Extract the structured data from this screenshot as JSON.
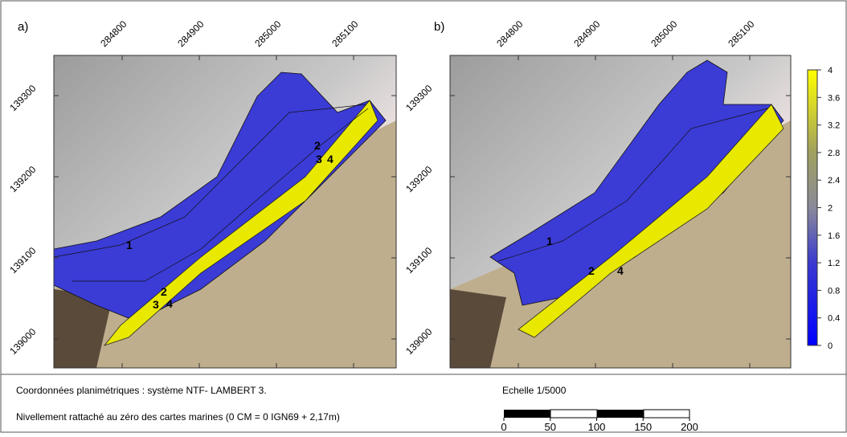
{
  "panels": [
    {
      "label": "a)",
      "x_ticks": [
        284800,
        284900,
        285000,
        285100
      ],
      "y_ticks": [
        139300,
        139200,
        139100,
        139000
      ],
      "contour_labels": [
        "1",
        "2",
        "3",
        "4",
        "2",
        "3",
        "4"
      ]
    },
    {
      "label": "b)",
      "x_ticks": [
        284800,
        284900,
        285000,
        285100
      ],
      "y_ticks": [
        139300,
        139200,
        139100,
        139000
      ],
      "contour_labels": [
        "1",
        "2",
        "4"
      ]
    }
  ],
  "colorbar": {
    "ticks": [
      0,
      0.4,
      0.8,
      1.2,
      1.6,
      2,
      2.4,
      2.8,
      3.2,
      3.6,
      4
    ]
  },
  "footer": {
    "coordinates": "Coordonnées planimétriques : système NTF- LAMBERT 3.",
    "leveling": "Nivellement rattaché au zéro des cartes marines (0 CM = 0 IGN69 + 2,17m)"
  },
  "scale_bar": {
    "title": "Echelle 1/5000",
    "ticks": [
      0,
      50,
      100,
      150,
      200
    ]
  }
}
